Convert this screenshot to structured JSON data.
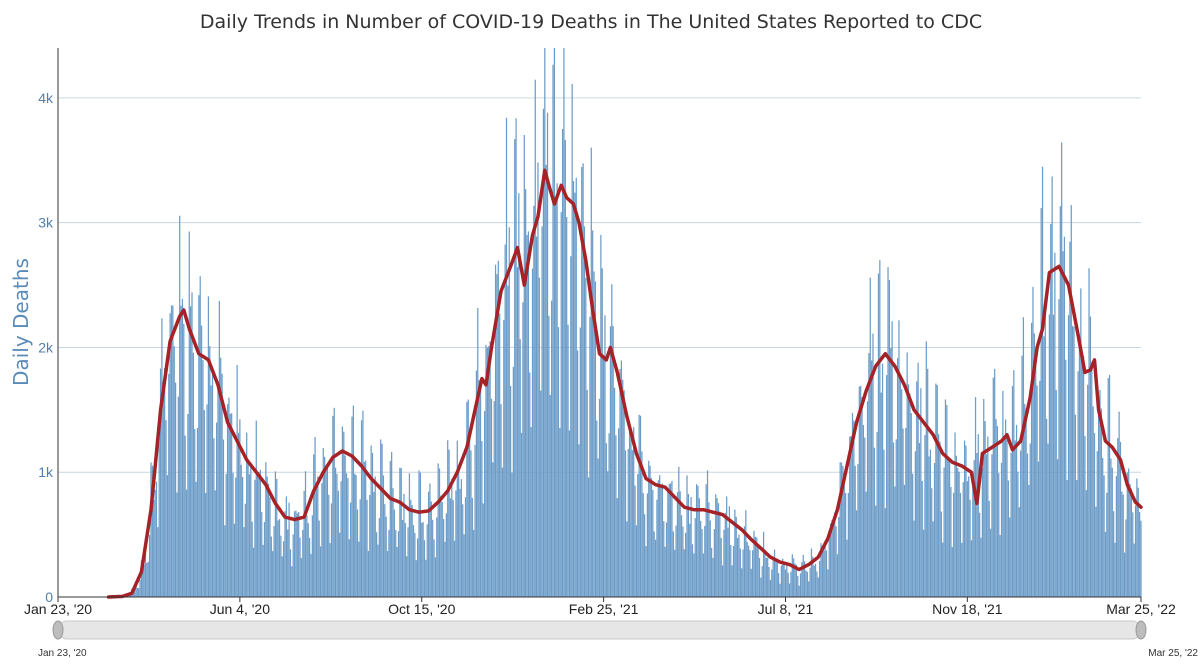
{
  "chart_data": {
    "type": "bar",
    "title": "Daily Trends in Number of COVID-19 Deaths in The United States Reported to CDC",
    "ylabel": "Daily Deaths",
    "xlabel": "",
    "x_range": [
      "2020-01-23",
      "2022-03-25"
    ],
    "ylim": [
      0,
      4400
    ],
    "y_ticks": [
      {
        "value": 0,
        "label": "0"
      },
      {
        "value": 1000,
        "label": "1k"
      },
      {
        "value": 2000,
        "label": "2k"
      },
      {
        "value": 3000,
        "label": "3k"
      },
      {
        "value": 4000,
        "label": "4k"
      }
    ],
    "x_ticks": [
      {
        "date": "2020-01-23",
        "label": "Jan 23, '20"
      },
      {
        "date": "2020-06-04",
        "label": "Jun 4, '20"
      },
      {
        "date": "2020-10-15",
        "label": "Oct 15, '20"
      },
      {
        "date": "2021-02-25",
        "label": "Feb 25, '21"
      },
      {
        "date": "2021-07-08",
        "label": "Jul 8, '21"
      },
      {
        "date": "2021-11-18",
        "label": "Nov 18, '21"
      },
      {
        "date": "2022-03-25",
        "label": "Mar 25, '22"
      }
    ],
    "grid": true,
    "series": [
      {
        "kind": "bar",
        "color": "#6b9bc7",
        "avg_points": [
          [
            "2020-03-05",
            0
          ],
          [
            "2020-03-12",
            10
          ],
          [
            "2020-03-19",
            60
          ],
          [
            "2020-03-26",
            300
          ],
          [
            "2020-04-02",
            900
          ],
          [
            "2020-04-09",
            1700
          ],
          [
            "2020-04-16",
            2150
          ],
          [
            "2020-04-23",
            2250
          ],
          [
            "2020-04-30",
            2150
          ],
          [
            "2020-05-07",
            1950
          ],
          [
            "2020-05-14",
            1850
          ],
          [
            "2020-05-21",
            1600
          ],
          [
            "2020-05-28",
            1350
          ],
          [
            "2020-06-04",
            1200
          ],
          [
            "2020-06-11",
            1050
          ],
          [
            "2020-06-18",
            950
          ],
          [
            "2020-06-25",
            830
          ],
          [
            "2020-07-02",
            700
          ],
          [
            "2020-07-09",
            640
          ],
          [
            "2020-07-16",
            650
          ],
          [
            "2020-07-23",
            680
          ],
          [
            "2020-07-30",
            900
          ],
          [
            "2020-08-06",
            1050
          ],
          [
            "2020-08-13",
            1150
          ],
          [
            "2020-08-20",
            1160
          ],
          [
            "2020-08-27",
            1100
          ],
          [
            "2020-09-03",
            1000
          ],
          [
            "2020-09-10",
            920
          ],
          [
            "2020-09-17",
            850
          ],
          [
            "2020-09-24",
            780
          ],
          [
            "2020-10-01",
            740
          ],
          [
            "2020-10-08",
            700
          ],
          [
            "2020-10-15",
            690
          ],
          [
            "2020-10-22",
            700
          ],
          [
            "2020-10-29",
            780
          ],
          [
            "2020-11-05",
            880
          ],
          [
            "2020-11-12",
            1050
          ],
          [
            "2020-11-19",
            1250
          ],
          [
            "2020-11-26",
            1600
          ],
          [
            "2020-12-03",
            1900
          ],
          [
            "2020-12-10",
            2400
          ],
          [
            "2020-12-17",
            2650
          ],
          [
            "2020-12-24",
            2750
          ],
          [
            "2020-12-31",
            2550
          ],
          [
            "2021-01-07",
            2950
          ],
          [
            "2021-01-14",
            3300
          ],
          [
            "2021-01-21",
            3200
          ],
          [
            "2021-01-28",
            3250
          ],
          [
            "2021-02-04",
            3100
          ],
          [
            "2021-02-11",
            2700
          ],
          [
            "2021-02-18",
            2300
          ],
          [
            "2021-02-25",
            2000
          ],
          [
            "2021-03-04",
            1850
          ],
          [
            "2021-03-11",
            1550
          ],
          [
            "2021-03-18",
            1200
          ],
          [
            "2021-03-25",
            1000
          ],
          [
            "2021-04-01",
            880
          ],
          [
            "2021-04-08",
            850
          ],
          [
            "2021-04-15",
            820
          ],
          [
            "2021-04-22",
            740
          ],
          [
            "2021-04-29",
            700
          ],
          [
            "2021-05-06",
            690
          ],
          [
            "2021-05-13",
            680
          ],
          [
            "2021-05-20",
            670
          ],
          [
            "2021-05-27",
            620
          ],
          [
            "2021-06-03",
            560
          ],
          [
            "2021-06-10",
            480
          ],
          [
            "2021-06-17",
            400
          ],
          [
            "2021-06-24",
            330
          ],
          [
            "2021-07-01",
            290
          ],
          [
            "2021-07-08",
            260
          ],
          [
            "2021-07-15",
            230
          ],
          [
            "2021-07-22",
            240
          ],
          [
            "2021-07-29",
            290
          ],
          [
            "2021-08-05",
            400
          ],
          [
            "2021-08-12",
            600
          ],
          [
            "2021-08-19",
            900
          ],
          [
            "2021-08-26",
            1250
          ],
          [
            "2021-09-02",
            1550
          ],
          [
            "2021-09-09",
            1800
          ],
          [
            "2021-09-16",
            1920
          ],
          [
            "2021-09-23",
            1880
          ],
          [
            "2021-09-30",
            1750
          ],
          [
            "2021-10-07",
            1600
          ],
          [
            "2021-10-14",
            1450
          ],
          [
            "2021-10-21",
            1350
          ],
          [
            "2021-10-28",
            1200
          ],
          [
            "2021-11-04",
            1100
          ],
          [
            "2021-11-11",
            1050
          ],
          [
            "2021-11-18",
            900
          ],
          [
            "2021-11-25",
            1100
          ],
          [
            "2021-12-02",
            1150
          ],
          [
            "2021-12-09",
            1250
          ],
          [
            "2021-12-16",
            1200
          ],
          [
            "2021-12-23",
            1300
          ],
          [
            "2021-12-30",
            1600
          ],
          [
            "2022-01-06",
            1900
          ],
          [
            "2022-01-13",
            2400
          ],
          [
            "2022-01-20",
            2600
          ],
          [
            "2022-01-27",
            2650
          ],
          [
            "2022-02-03",
            2300
          ],
          [
            "2022-02-10",
            1900
          ],
          [
            "2022-02-17",
            1800
          ],
          [
            "2022-02-24",
            1300
          ],
          [
            "2022-03-03",
            1200
          ],
          [
            "2022-03-10",
            1050
          ],
          [
            "2022-03-17",
            850
          ],
          [
            "2022-03-25",
            720
          ]
        ]
      },
      {
        "kind": "line",
        "color": "#a52227",
        "points": [
          [
            "2020-02-29",
            0
          ],
          [
            "2020-03-10",
            5
          ],
          [
            "2020-03-17",
            30
          ],
          [
            "2020-03-24",
            200
          ],
          [
            "2020-03-31",
            700
          ],
          [
            "2020-04-07",
            1500
          ],
          [
            "2020-04-14",
            2050
          ],
          [
            "2020-04-21",
            2250
          ],
          [
            "2020-04-24",
            2300
          ],
          [
            "2020-04-28",
            2150
          ],
          [
            "2020-05-05",
            1950
          ],
          [
            "2020-05-12",
            1900
          ],
          [
            "2020-05-19",
            1700
          ],
          [
            "2020-05-26",
            1400
          ],
          [
            "2020-06-02",
            1250
          ],
          [
            "2020-06-09",
            1100
          ],
          [
            "2020-06-16",
            1000
          ],
          [
            "2020-06-23",
            900
          ],
          [
            "2020-06-30",
            750
          ],
          [
            "2020-07-07",
            640
          ],
          [
            "2020-07-14",
            620
          ],
          [
            "2020-07-21",
            640
          ],
          [
            "2020-07-28",
            850
          ],
          [
            "2020-08-04",
            1000
          ],
          [
            "2020-08-11",
            1120
          ],
          [
            "2020-08-18",
            1170
          ],
          [
            "2020-08-25",
            1130
          ],
          [
            "2020-09-01",
            1050
          ],
          [
            "2020-09-08",
            950
          ],
          [
            "2020-09-15",
            870
          ],
          [
            "2020-09-22",
            790
          ],
          [
            "2020-09-29",
            760
          ],
          [
            "2020-10-06",
            700
          ],
          [
            "2020-10-13",
            680
          ],
          [
            "2020-10-20",
            690
          ],
          [
            "2020-10-27",
            760
          ],
          [
            "2020-11-03",
            850
          ],
          [
            "2020-11-10",
            1000
          ],
          [
            "2020-11-17",
            1200
          ],
          [
            "2020-11-24",
            1550
          ],
          [
            "2020-11-28",
            1750
          ],
          [
            "2020-12-01",
            1700
          ],
          [
            "2020-12-05",
            2000
          ],
          [
            "2020-12-12",
            2450
          ],
          [
            "2020-12-19",
            2650
          ],
          [
            "2020-12-24",
            2800
          ],
          [
            "2020-12-29",
            2500
          ],
          [
            "2021-01-04",
            2900
          ],
          [
            "2021-01-08",
            3050
          ],
          [
            "2021-01-13",
            3420
          ],
          [
            "2021-01-16",
            3300
          ],
          [
            "2021-01-20",
            3150
          ],
          [
            "2021-01-25",
            3300
          ],
          [
            "2021-01-29",
            3200
          ],
          [
            "2021-02-03",
            3150
          ],
          [
            "2021-02-07",
            3000
          ],
          [
            "2021-02-12",
            2700
          ],
          [
            "2021-02-17",
            2300
          ],
          [
            "2021-02-22",
            1950
          ],
          [
            "2021-02-27",
            1900
          ],
          [
            "2021-03-02",
            2000
          ],
          [
            "2021-03-07",
            1800
          ],
          [
            "2021-03-14",
            1450
          ],
          [
            "2021-03-21",
            1150
          ],
          [
            "2021-03-28",
            950
          ],
          [
            "2021-04-04",
            900
          ],
          [
            "2021-04-11",
            880
          ],
          [
            "2021-04-18",
            800
          ],
          [
            "2021-04-25",
            720
          ],
          [
            "2021-05-02",
            700
          ],
          [
            "2021-05-09",
            700
          ],
          [
            "2021-05-16",
            680
          ],
          [
            "2021-05-23",
            660
          ],
          [
            "2021-05-30",
            600
          ],
          [
            "2021-06-06",
            540
          ],
          [
            "2021-06-13",
            460
          ],
          [
            "2021-06-20",
            390
          ],
          [
            "2021-06-27",
            320
          ],
          [
            "2021-07-04",
            280
          ],
          [
            "2021-07-11",
            260
          ],
          [
            "2021-07-18",
            220
          ],
          [
            "2021-07-25",
            260
          ],
          [
            "2021-08-01",
            320
          ],
          [
            "2021-08-08",
            470
          ],
          [
            "2021-08-15",
            700
          ],
          [
            "2021-08-22",
            1050
          ],
          [
            "2021-08-29",
            1400
          ],
          [
            "2021-09-05",
            1650
          ],
          [
            "2021-09-12",
            1850
          ],
          [
            "2021-09-19",
            1950
          ],
          [
            "2021-09-26",
            1850
          ],
          [
            "2021-10-03",
            1700
          ],
          [
            "2021-10-10",
            1500
          ],
          [
            "2021-10-17",
            1400
          ],
          [
            "2021-10-24",
            1300
          ],
          [
            "2021-10-31",
            1150
          ],
          [
            "2021-11-07",
            1080
          ],
          [
            "2021-11-14",
            1050
          ],
          [
            "2021-11-21",
            1000
          ],
          [
            "2021-11-25",
            750
          ],
          [
            "2021-11-29",
            1150
          ],
          [
            "2021-12-06",
            1200
          ],
          [
            "2021-12-13",
            1250
          ],
          [
            "2021-12-17",
            1300
          ],
          [
            "2021-12-21",
            1180
          ],
          [
            "2021-12-27",
            1250
          ],
          [
            "2022-01-03",
            1600
          ],
          [
            "2022-01-08",
            2000
          ],
          [
            "2022-01-12",
            2150
          ],
          [
            "2022-01-17",
            2600
          ],
          [
            "2022-01-24",
            2650
          ],
          [
            "2022-01-31",
            2500
          ],
          [
            "2022-02-07",
            2100
          ],
          [
            "2022-02-12",
            1800
          ],
          [
            "2022-02-16",
            1820
          ],
          [
            "2022-02-19",
            1900
          ],
          [
            "2022-02-22",
            1500
          ],
          [
            "2022-02-27",
            1250
          ],
          [
            "2022-03-04",
            1200
          ],
          [
            "2022-03-10",
            1100
          ],
          [
            "2022-03-15",
            900
          ],
          [
            "2022-03-21",
            760
          ],
          [
            "2022-03-25",
            720
          ]
        ]
      }
    ],
    "navigator": {
      "start_label": "Jan 23, '20",
      "end_label": "Mar 25, '22"
    }
  }
}
